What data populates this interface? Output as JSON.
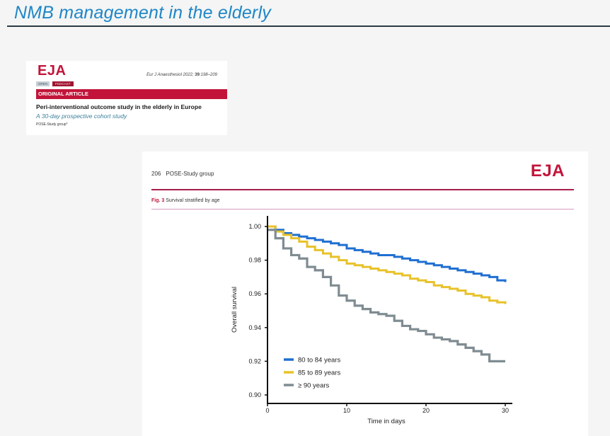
{
  "slide": {
    "title": "NMB management in the elderly"
  },
  "article_header": {
    "journal_logo": "EJA",
    "citation_prefix": "Eur J Anaesthesiol 2022; ",
    "citation_volume": "39",
    "citation_pages": ":198–209",
    "badges": [
      "OPEN",
      "PODCAST"
    ],
    "section": "ORIGINAL ARTICLE",
    "title": "Peri-interventional outcome study in the elderly in Europe",
    "subtitle": "A 30-day prospective cohort study",
    "authors": "POSE-Study group*"
  },
  "figure_page": {
    "page_number": "206",
    "running_head": "POSE-Study group",
    "journal_logo": "EJA",
    "figure_label": "Fig. 3",
    "figure_caption": "Survival stratified by age"
  },
  "chart_data": {
    "type": "line",
    "step": true,
    "title": "Survival stratified by age",
    "xlabel": "Time in days",
    "ylabel": "Overall survival",
    "xlim": [
      0,
      30
    ],
    "ylim": [
      0.9,
      1.0
    ],
    "xticks": [
      0,
      10,
      20,
      30
    ],
    "xtick_labels": [
      "0",
      "10",
      "20",
      "30"
    ],
    "yticks": [
      0.9,
      0.92,
      0.94,
      0.96,
      0.98,
      1.0
    ],
    "ytick_labels": [
      "0.90",
      "0.92",
      "0.94",
      "0.96",
      "0.98",
      "1.00"
    ],
    "grid": false,
    "legend_position": "bottom-left",
    "x": [
      0,
      1,
      2,
      3,
      4,
      5,
      6,
      7,
      8,
      9,
      10,
      11,
      12,
      13,
      14,
      15,
      16,
      17,
      18,
      19,
      20,
      21,
      22,
      23,
      24,
      25,
      26,
      27,
      28,
      29,
      30
    ],
    "series": [
      {
        "name": "80 to 84 years",
        "color": "#1f6fd1",
        "values": [
          1.0,
          0.998,
          0.996,
          0.995,
          0.994,
          0.993,
          0.992,
          0.991,
          0.99,
          0.989,
          0.987,
          0.986,
          0.985,
          0.984,
          0.983,
          0.983,
          0.982,
          0.981,
          0.98,
          0.979,
          0.978,
          0.977,
          0.976,
          0.975,
          0.974,
          0.973,
          0.972,
          0.971,
          0.97,
          0.968,
          0.967
        ]
      },
      {
        "name": "85 to 89 years",
        "color": "#e8c22a",
        "values": [
          1.0,
          0.997,
          0.995,
          0.993,
          0.991,
          0.988,
          0.986,
          0.984,
          0.982,
          0.98,
          0.978,
          0.977,
          0.976,
          0.975,
          0.974,
          0.973,
          0.972,
          0.971,
          0.969,
          0.968,
          0.967,
          0.965,
          0.964,
          0.963,
          0.962,
          0.96,
          0.959,
          0.958,
          0.956,
          0.955,
          0.954
        ]
      },
      {
        "name": "≥ 90 years",
        "color": "#7f8c92",
        "values": [
          0.998,
          0.993,
          0.987,
          0.983,
          0.981,
          0.976,
          0.974,
          0.97,
          0.965,
          0.959,
          0.956,
          0.953,
          0.951,
          0.949,
          0.948,
          0.947,
          0.944,
          0.941,
          0.939,
          0.938,
          0.936,
          0.934,
          0.933,
          0.932,
          0.93,
          0.928,
          0.926,
          0.924,
          0.92,
          0.92,
          0.92
        ]
      }
    ]
  }
}
